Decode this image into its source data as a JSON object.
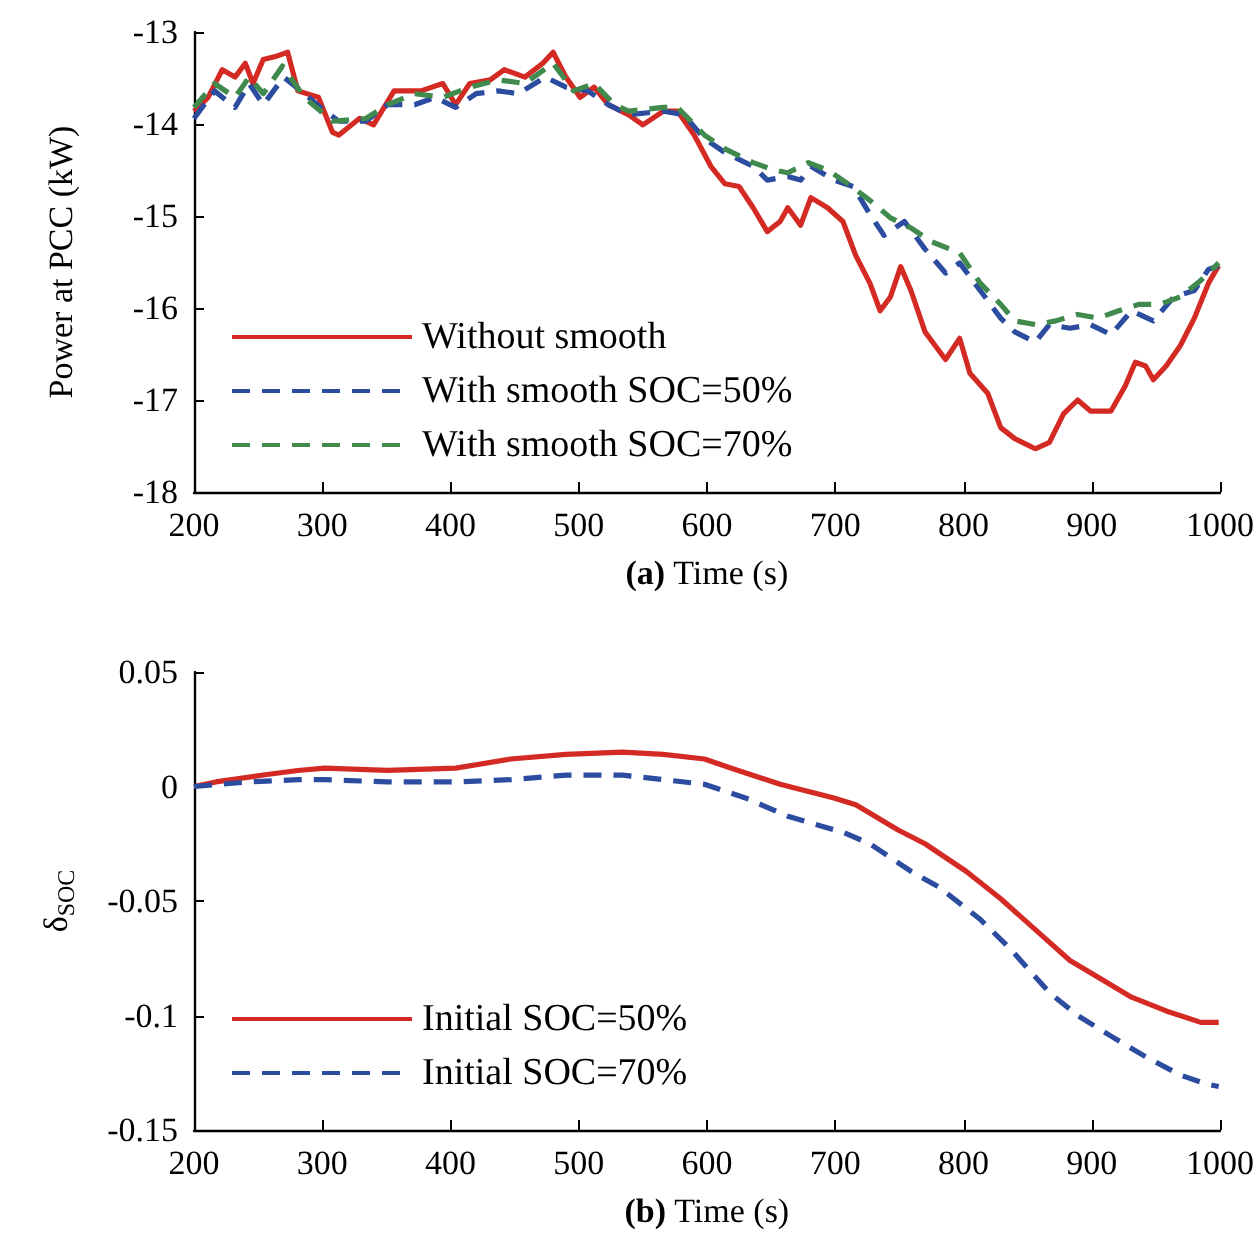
{
  "chart_data": [
    {
      "type": "line",
      "xlabel": "(a) Time (s)",
      "ylabel": "Power at PCC (kW)",
      "xlim": [
        200,
        1000
      ],
      "xticks": [
        200,
        300,
        400,
        500,
        600,
        700,
        800,
        900,
        1000
      ],
      "ylim": [
        -18,
        -13
      ],
      "yticks": [
        -18,
        -17,
        -16,
        -15,
        -14,
        -13
      ],
      "grid": false,
      "legend": "bottom left",
      "marker": "none",
      "series": [
        {
          "name": "Without smooth",
          "color": "#d42a24",
          "line_style": "solid",
          "x": [
            200,
            211,
            222,
            232,
            240,
            246,
            254,
            265,
            273,
            281,
            297,
            308,
            313,
            329,
            340,
            356,
            377,
            394,
            404,
            415,
            431,
            442,
            458,
            472,
            480,
            490,
            501,
            512,
            523,
            539,
            550,
            566,
            577,
            590,
            603,
            614,
            625,
            636,
            647,
            657,
            663,
            673,
            681,
            694,
            706,
            716,
            727,
            735,
            743,
            751,
            759,
            770,
            778,
            786,
            797,
            805,
            819,
            829,
            840,
            856,
            867,
            878,
            889,
            899,
            915,
            926,
            934,
            942,
            948,
            958,
            969,
            980,
            991,
            999
          ],
          "values": [
            -13.86,
            -13.71,
            -13.41,
            -13.49,
            -13.34,
            -13.56,
            -13.3,
            -13.26,
            -13.22,
            -13.64,
            -13.71,
            -14.09,
            -14.12,
            -13.94,
            -14.01,
            -13.64,
            -13.64,
            -13.56,
            -13.79,
            -13.56,
            -13.52,
            -13.41,
            -13.49,
            -13.34,
            -13.22,
            -13.49,
            -13.71,
            -13.6,
            -13.79,
            -13.9,
            -14.01,
            -13.86,
            -13.86,
            -14.12,
            -14.46,
            -14.65,
            -14.68,
            -14.91,
            -15.17,
            -15.06,
            -14.91,
            -15.1,
            -14.8,
            -14.91,
            -15.06,
            -15.43,
            -15.73,
            -16.03,
            -15.88,
            -15.55,
            -15.81,
            -16.26,
            -16.41,
            -16.56,
            -16.33,
            -16.71,
            -16.93,
            -17.3,
            -17.42,
            -17.53,
            -17.46,
            -17.15,
            -17.0,
            -17.12,
            -17.12,
            -16.85,
            -16.59,
            -16.63,
            -16.78,
            -16.63,
            -16.41,
            -16.11,
            -15.73,
            -15.54
          ]
        },
        {
          "name": "With smooth SOC=50%",
          "color": "#2c4ca0",
          "line_style": "dashed",
          "x": [
            200,
            216,
            232,
            243,
            254,
            270,
            286,
            302,
            313,
            334,
            351,
            372,
            388,
            404,
            420,
            437,
            453,
            474,
            490,
            507,
            523,
            539,
            566,
            582,
            598,
            614,
            636,
            647,
            663,
            673,
            681,
            699,
            714,
            727,
            738,
            754,
            770,
            786,
            797,
            813,
            829,
            840,
            856,
            867,
            883,
            899,
            915,
            931,
            948,
            964,
            980,
            991,
            999
          ],
          "values": [
            -13.94,
            -13.64,
            -13.82,
            -13.56,
            -13.79,
            -13.49,
            -13.67,
            -13.86,
            -13.97,
            -13.97,
            -13.79,
            -13.79,
            -13.71,
            -13.82,
            -13.67,
            -13.64,
            -13.67,
            -13.49,
            -13.6,
            -13.64,
            -13.79,
            -13.9,
            -13.86,
            -13.9,
            -14.16,
            -14.31,
            -14.46,
            -14.61,
            -14.57,
            -14.61,
            -14.46,
            -14.61,
            -14.68,
            -14.98,
            -15.21,
            -15.06,
            -15.36,
            -15.62,
            -15.51,
            -15.81,
            -16.11,
            -16.26,
            -16.37,
            -16.18,
            -16.22,
            -16.18,
            -16.29,
            -16.03,
            -16.14,
            -15.88,
            -15.81,
            -15.58,
            -15.54
          ]
        },
        {
          "name": "With smooth SOC=70%",
          "color": "#3f8a4c",
          "line_style": "dashed",
          "x": [
            200,
            216,
            232,
            243,
            254,
            269,
            286,
            308,
            334,
            351,
            372,
            394,
            415,
            437,
            458,
            480,
            496,
            512,
            528,
            539,
            566,
            577,
            598,
            614,
            636,
            652,
            663,
            679,
            694,
            710,
            727,
            743,
            759,
            775,
            797,
            813,
            829,
            840,
            856,
            872,
            889,
            905,
            921,
            937,
            953,
            969,
            985,
            999
          ],
          "values": [
            -13.82,
            -13.56,
            -13.71,
            -13.49,
            -13.67,
            -13.37,
            -13.71,
            -13.97,
            -13.94,
            -13.79,
            -13.67,
            -13.71,
            -13.6,
            -13.52,
            -13.56,
            -13.34,
            -13.64,
            -13.56,
            -13.79,
            -13.86,
            -13.82,
            -13.82,
            -14.12,
            -14.27,
            -14.42,
            -14.5,
            -14.53,
            -14.42,
            -14.5,
            -14.65,
            -14.83,
            -15.02,
            -15.13,
            -15.28,
            -15.4,
            -15.73,
            -15.96,
            -16.14,
            -16.18,
            -16.14,
            -16.07,
            -16.11,
            -16.03,
            -15.96,
            -15.96,
            -15.88,
            -15.7,
            -15.51
          ]
        }
      ]
    },
    {
      "type": "line",
      "xlabel": "(b) Time (s)",
      "ylabel": "δ$_{SOC}$",
      "xlim": [
        200,
        1000
      ],
      "xticks": [
        200,
        300,
        400,
        500,
        600,
        700,
        800,
        900,
        1000
      ],
      "ylim": [
        -0.15,
        0.05
      ],
      "yticks": [
        -0.15,
        -0.1,
        -0.05,
        0,
        0.05
      ],
      "grid": false,
      "legend": "bottom left",
      "marker": "none",
      "series": [
        {
          "name": "Initial SOC=50%",
          "color": "#d42a24",
          "line_style": "solid",
          "x": [
            200,
            217,
            254,
            281,
            302,
            351,
            404,
            447,
            490,
            534,
            566,
            598,
            619,
            657,
            699,
            716,
            749,
            770,
            802,
            829,
            861,
            883,
            904,
            931,
            958,
            985,
            999
          ],
          "values": [
            0,
            0.002,
            0.005,
            0.007,
            0.008,
            0.007,
            0.008,
            0.012,
            0.014,
            0.015,
            0.014,
            0.012,
            0.008,
            0.001,
            -0.005,
            -0.008,
            -0.019,
            -0.025,
            -0.037,
            -0.049,
            -0.065,
            -0.076,
            -0.083,
            -0.092,
            -0.098,
            -0.103,
            -0.103
          ]
        },
        {
          "name": "Initial SOC=70%",
          "color": "#2c4ca0",
          "line_style": "dashed",
          "x": [
            200,
            243,
            281,
            302,
            351,
            404,
            447,
            490,
            534,
            566,
            598,
            630,
            663,
            706,
            727,
            759,
            781,
            813,
            835,
            867,
            889,
            915,
            942,
            969,
            990,
            999
          ],
          "values": [
            0,
            0.002,
            0.003,
            0.003,
            0.002,
            0.002,
            0.003,
            0.005,
            0.005,
            0.003,
            0.001,
            -0.005,
            -0.013,
            -0.02,
            -0.025,
            -0.037,
            -0.044,
            -0.058,
            -0.07,
            -0.09,
            -0.1,
            -0.109,
            -0.118,
            -0.126,
            -0.13,
            -0.131
          ]
        }
      ]
    }
  ]
}
